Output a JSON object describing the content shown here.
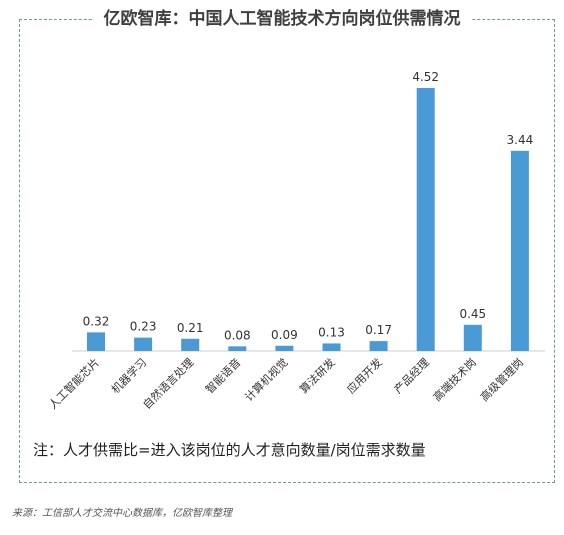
{
  "title": "亿欧智库：中国人工智能技术方向岗位供需情况",
  "note": "注：人才供需比=进入该岗位的人才意向数量/岗位需求数量",
  "source": "来源：工信部人才交流中心数据库，亿欧智库整理",
  "colors": {
    "bar": "#4a9ad6",
    "frame": "#6f97a8",
    "axis": "#cfcfcf",
    "label": "#333333"
  },
  "chart_data": {
    "type": "bar",
    "title": "亿欧智库：中国人工智能技术方向岗位供需情况",
    "xlabel": "",
    "ylabel": "",
    "categories": [
      "人工智能芯片",
      "机器学习",
      "自然语言处理",
      "智能语音",
      "计算机视觉",
      "算法研发",
      "应用开发",
      "产品经理",
      "高端技术岗",
      "高级管理岗"
    ],
    "values": [
      0.32,
      0.23,
      0.21,
      0.08,
      0.09,
      0.13,
      0.17,
      4.52,
      0.45,
      3.44
    ],
    "value_labels": [
      "0.32",
      "0.23",
      "0.21",
      "0.08",
      "0.09",
      "0.13",
      "0.17",
      "4.52",
      "0.45",
      "3.44"
    ],
    "ylim": [
      0,
      4.52
    ],
    "grid": false,
    "legend": "none"
  }
}
